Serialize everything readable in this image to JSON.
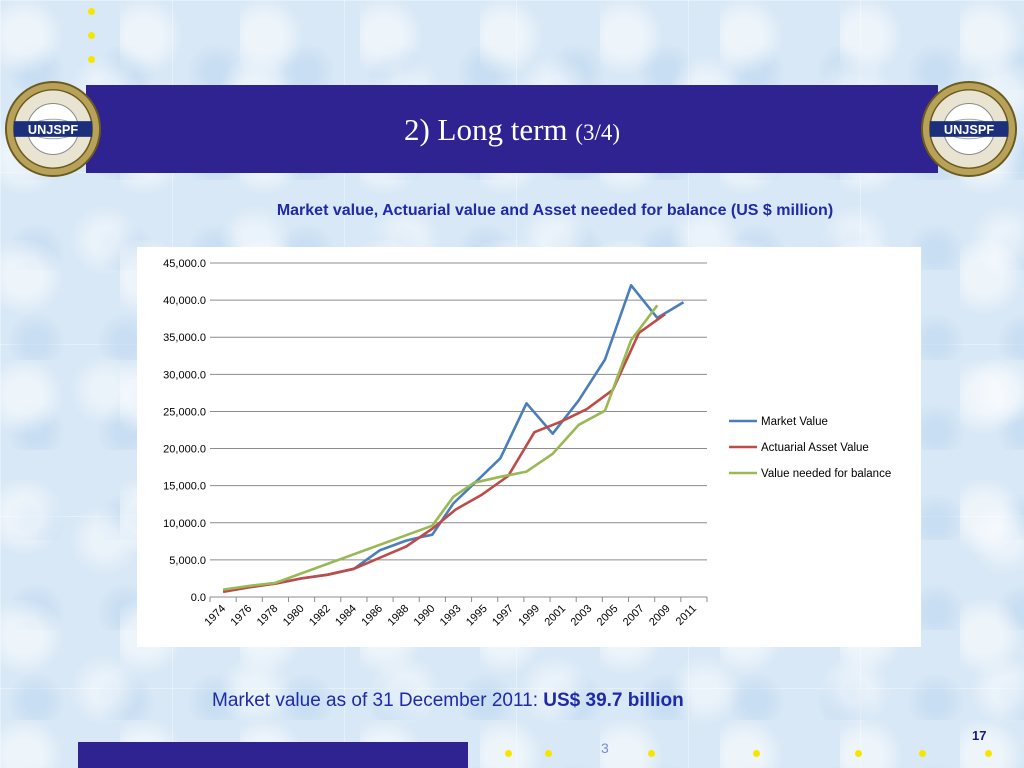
{
  "slide": {
    "title_main": "2) Long term",
    "title_sub": "(3/4)",
    "logo_text": "UNJSPF",
    "chart_heading": "Market value, Actuarial value and Asset needed for balance (US $ million)",
    "caption_prefix": "Market value  as of 31 December 2011: ",
    "caption_value": "US$ 39.7 billion",
    "footer_number": "3",
    "page_number": "17"
  },
  "colors": {
    "header": "#2e2391",
    "accent_text": "#1f2aa6",
    "bullet": "#f7e500"
  },
  "chart_data": {
    "type": "line",
    "title": "",
    "xlabel": "",
    "ylabel": "",
    "categories": [
      "1974",
      "1976",
      "1978",
      "1980",
      "1982",
      "1984",
      "1986",
      "1988",
      "1990",
      "1993",
      "1995",
      "1997",
      "1999",
      "2001",
      "2003",
      "2005",
      "2007",
      "2009",
      "2011"
    ],
    "ylim": [
      0,
      45000
    ],
    "yticks": [
      0,
      5000,
      10000,
      15000,
      20000,
      25000,
      30000,
      35000,
      40000,
      45000
    ],
    "ytick_labels": [
      "0.0",
      "5,000.0",
      "10,000.0",
      "15,000.0",
      "20,000.0",
      "25,000.0",
      "30,000.0",
      "35,000.0",
      "40,000.0",
      "45,000.0"
    ],
    "grid": true,
    "legend_position": "right",
    "series": [
      {
        "name": "Market Value",
        "color": "#4a7ebb",
        "points": [
          [
            0,
            800
          ],
          [
            1,
            1400
          ],
          [
            2,
            1800
          ],
          [
            3,
            2500
          ],
          [
            4,
            3000
          ],
          [
            5,
            3800
          ],
          [
            6,
            6300
          ],
          [
            7,
            7600
          ],
          [
            7.6,
            8100
          ],
          [
            8,
            8400
          ],
          [
            8.8,
            12600
          ],
          [
            9.6,
            15300
          ],
          [
            10.6,
            18700
          ],
          [
            11.6,
            26100
          ],
          [
            12.6,
            22000
          ],
          [
            13.6,
            26500
          ],
          [
            14.6,
            32000
          ],
          [
            15.6,
            42000
          ],
          [
            16.6,
            37600
          ],
          [
            17.6,
            39700
          ]
        ]
      },
      {
        "name": "Actuarial Asset Value",
        "color": "#be4b48",
        "points": [
          [
            0,
            700
          ],
          [
            1,
            1300
          ],
          [
            2,
            1800
          ],
          [
            3,
            2500
          ],
          [
            4,
            3000
          ],
          [
            5,
            3800
          ],
          [
            6,
            5300
          ],
          [
            7,
            6800
          ],
          [
            8,
            9200
          ],
          [
            8.9,
            11800
          ],
          [
            9.9,
            13800
          ],
          [
            10.9,
            16300
          ],
          [
            11.9,
            22200
          ],
          [
            12.9,
            23600
          ],
          [
            13.9,
            25300
          ],
          [
            14.9,
            27900
          ],
          [
            15.9,
            35600
          ],
          [
            16.9,
            38100
          ]
        ]
      },
      {
        "name": "Value needed for balance",
        "color": "#98b954",
        "points": [
          [
            0,
            1000
          ],
          [
            1,
            1500
          ],
          [
            2,
            1900
          ],
          [
            8.0,
            9600
          ],
          [
            8.8,
            13500
          ],
          [
            9.6,
            15400
          ],
          [
            10.6,
            16200
          ],
          [
            11.6,
            16900
          ],
          [
            12.6,
            19300
          ],
          [
            13.6,
            23200
          ],
          [
            14.6,
            25100
          ],
          [
            15.6,
            34600
          ],
          [
            16.6,
            39300
          ]
        ]
      }
    ]
  }
}
